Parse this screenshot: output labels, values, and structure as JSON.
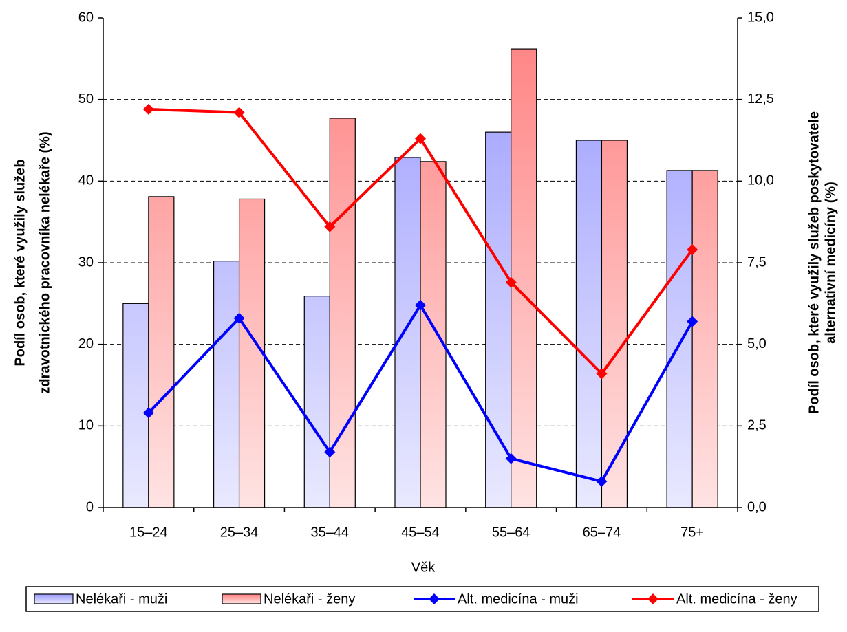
{
  "chart_data": {
    "type": "bar-line",
    "x_label": "Věk",
    "y_label": [
      "Podíl osob, které využily služeb",
      "zdravotnického pracovníka nelékaře (%)"
    ],
    "y2_label": [
      "Podíl osob, které využily služeb poskytovatele",
      "alternativní medicíny (%)"
    ],
    "categories": [
      "15–24",
      "25–34",
      "35–44",
      "45–54",
      "55–64",
      "65–74",
      "75+"
    ],
    "series": [
      {
        "name": "Nelékaři - muži",
        "type": "bar",
        "color": "#9999ff",
        "values": [
          25,
          30.2,
          25.9,
          42.9,
          46,
          45,
          41.3
        ]
      },
      {
        "name": "Nelékaři - ženy",
        "type": "bar",
        "color": "#ff8080",
        "values": [
          38.1,
          37.8,
          47.7,
          42.4,
          56.2,
          45,
          41.3
        ]
      },
      {
        "name": "Alt. medicína - muži",
        "type": "line",
        "axis": "y2",
        "color": "#0000ff",
        "values": [
          2.9,
          5.8,
          1.7,
          6.2,
          1.5,
          0.8,
          5.7
        ]
      },
      {
        "name": "Alt. medicína - ženy",
        "type": "line",
        "axis": "y2",
        "color": "#ff0000",
        "values": [
          12.2,
          12.1,
          8.6,
          11.3,
          6.9,
          4.1,
          7.9
        ]
      }
    ],
    "ylim": [
      0,
      60
    ],
    "yticks": [
      0,
      10,
      20,
      30,
      40,
      50,
      60
    ],
    "y2lim": [
      0,
      15
    ],
    "y2ticks": [
      {
        "value": 0,
        "label": "0,0"
      },
      {
        "value": 2.5,
        "label": "2,5"
      },
      {
        "value": 5,
        "label": "5,0"
      },
      {
        "value": 7.5,
        "label": "7,5"
      },
      {
        "value": 10,
        "label": "10,0"
      },
      {
        "value": 12.5,
        "label": "12,5"
      },
      {
        "value": 15,
        "label": "15,0"
      }
    ],
    "grid": true,
    "legend": "bottom"
  }
}
